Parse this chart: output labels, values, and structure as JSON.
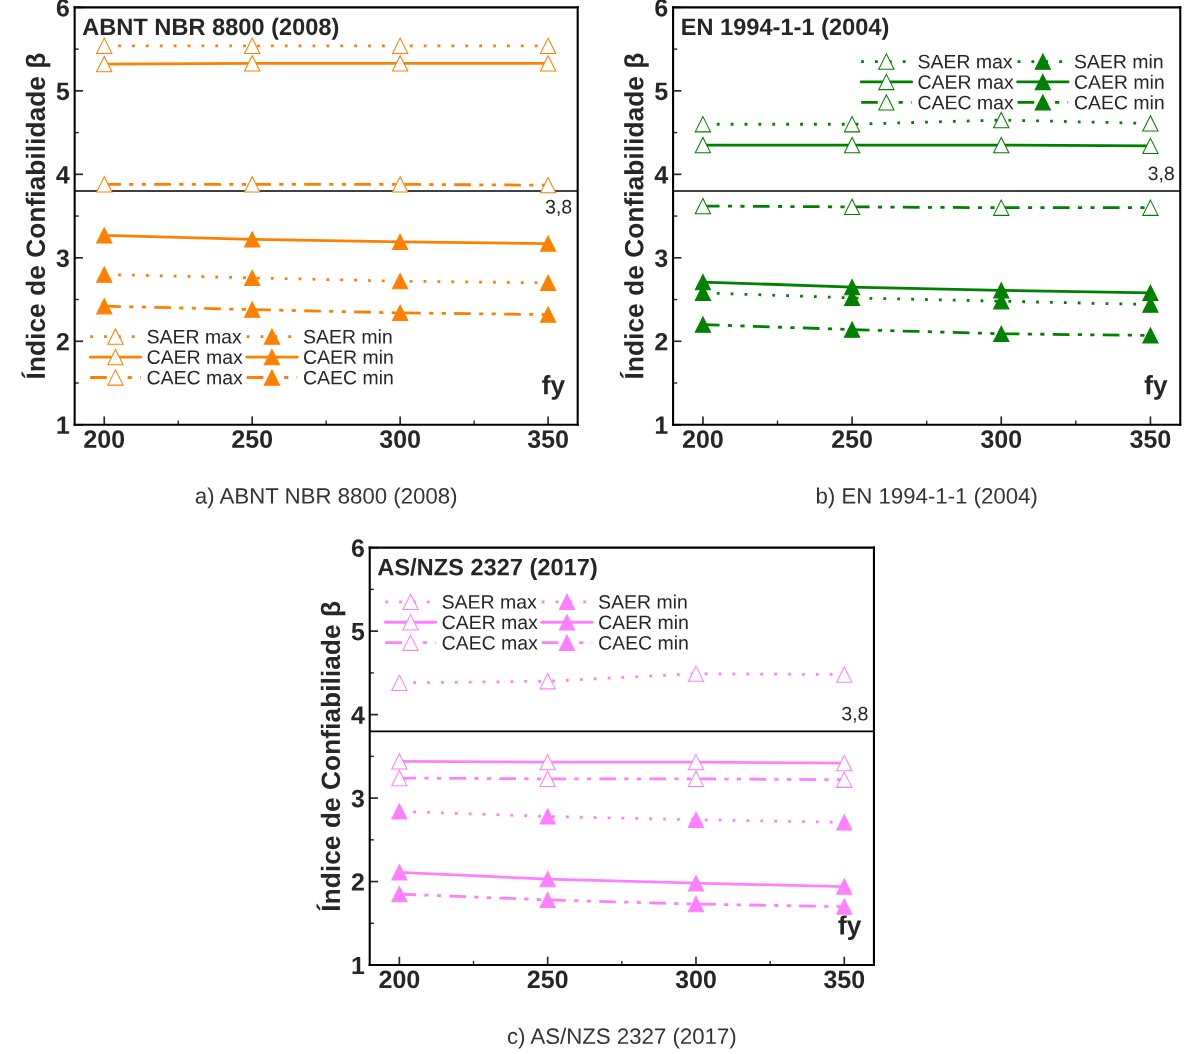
{
  "chart_data": [
    {
      "type": "line",
      "title": "ABNT NBR 8800 (2008)",
      "xlabel": "fy",
      "ylabel": "Índice de Confiabilidade β",
      "x": [
        200,
        250,
        300,
        350
      ],
      "xlim": [
        190,
        360
      ],
      "xticks": [
        200,
        250,
        300,
        350
      ],
      "ylim": [
        1,
        6
      ],
      "yticks": [
        1,
        2,
        3,
        4,
        5,
        6
      ],
      "grid": false,
      "legend": "bottom left",
      "marker": "triangle",
      "annotations": [
        "a) ABNT NBR 8800 (2008)"
      ],
      "ref_lines": [
        {
          "axis": "y",
          "value": 3.8,
          "label": "3,8",
          "color": "#000000",
          "line_style": "solid"
        }
      ],
      "series": [
        {
          "name": "SAER max",
          "color": "#ff8000",
          "line_style": "dotted",
          "values": [
            5.54,
            5.54,
            5.54,
            5.54
          ]
        },
        {
          "name": "CAER max",
          "color": "#ff8000",
          "line_style": "solid",
          "values": [
            5.32,
            5.33,
            5.33,
            5.33
          ]
        },
        {
          "name": "CAEC max",
          "color": "#ff8000",
          "line_style": "dashed",
          "values": [
            3.88,
            3.88,
            3.88,
            3.87
          ]
        },
        {
          "name": "SAER min",
          "color": "#ff8000",
          "line_style": "dotted",
          "values": [
            2.8,
            2.76,
            2.72,
            2.7
          ]
        },
        {
          "name": "CAER min",
          "color": "#ff8000",
          "line_style": "solid",
          "values": [
            3.27,
            3.22,
            3.19,
            3.17
          ]
        },
        {
          "name": "CAEC min",
          "color": "#ff8000",
          "line_style": "dashed",
          "values": [
            2.42,
            2.38,
            2.34,
            2.32
          ]
        }
      ]
    },
    {
      "type": "line",
      "title": "EN 1994-1-1 (2004)",
      "xlabel": "fy",
      "ylabel": "Índice de Confiabilidade β",
      "x": [
        200,
        250,
        300,
        350
      ],
      "xlim": [
        190,
        360
      ],
      "xticks": [
        200,
        250,
        300,
        350
      ],
      "ylim": [
        1,
        6
      ],
      "yticks": [
        1,
        2,
        3,
        4,
        5,
        6
      ],
      "grid": false,
      "legend": "top right",
      "marker": "triangle",
      "annotations": [
        "b) EN 1994-1-1 (2004)"
      ],
      "ref_lines": [
        {
          "axis": "y",
          "value": 3.8,
          "label": "3,8",
          "color": "#000000",
          "line_style": "solid"
        }
      ],
      "series": [
        {
          "name": "SAER max",
          "color": "#008000",
          "line_style": "dotted",
          "values": [
            4.6,
            4.6,
            4.65,
            4.61
          ]
        },
        {
          "name": "CAER max",
          "color": "#008000",
          "line_style": "solid",
          "values": [
            4.35,
            4.35,
            4.35,
            4.34
          ]
        },
        {
          "name": "CAEC max",
          "color": "#008000",
          "line_style": "dashed",
          "values": [
            3.62,
            3.61,
            3.6,
            3.6
          ]
        },
        {
          "name": "SAER min",
          "color": "#008000",
          "line_style": "dotted",
          "values": [
            2.58,
            2.52,
            2.48,
            2.44
          ]
        },
        {
          "name": "CAER min",
          "color": "#008000",
          "line_style": "solid",
          "values": [
            2.71,
            2.65,
            2.61,
            2.58
          ]
        },
        {
          "name": "CAEC min",
          "color": "#008000",
          "line_style": "dashed",
          "values": [
            2.2,
            2.14,
            2.09,
            2.07
          ]
        }
      ]
    },
    {
      "type": "line",
      "title": "AS/NZS 2327 (2017)",
      "xlabel": "fy",
      "ylabel": "Índice de Confiabiliade β",
      "x": [
        200,
        250,
        300,
        350
      ],
      "xlim": [
        190,
        360
      ],
      "xticks": [
        200,
        250,
        300,
        350
      ],
      "ylim": [
        1,
        6
      ],
      "yticks": [
        1,
        2,
        3,
        4,
        5,
        6
      ],
      "grid": false,
      "legend": "top left",
      "marker": "triangle",
      "annotations": [
        "c) AS/NZS 2327 (2017)"
      ],
      "ref_lines": [
        {
          "axis": "y",
          "value": 3.8,
          "label": "3,8",
          "color": "#000000",
          "line_style": "solid"
        }
      ],
      "series": [
        {
          "name": "SAER max",
          "color": "#ff80ff",
          "line_style": "dotted",
          "values": [
            4.38,
            4.4,
            4.49,
            4.48
          ]
        },
        {
          "name": "CAER max",
          "color": "#ff80ff",
          "line_style": "solid",
          "values": [
            3.44,
            3.43,
            3.43,
            3.42
          ]
        },
        {
          "name": "CAEC max",
          "color": "#ff80ff",
          "line_style": "dashed",
          "values": [
            3.24,
            3.23,
            3.23,
            3.22
          ]
        },
        {
          "name": "SAER min",
          "color": "#ff80ff",
          "line_style": "dotted",
          "values": [
            2.84,
            2.78,
            2.74,
            2.71
          ]
        },
        {
          "name": "CAER min",
          "color": "#ff80ff",
          "line_style": "solid",
          "values": [
            2.11,
            2.03,
            1.98,
            1.94
          ]
        },
        {
          "name": "CAEC min",
          "color": "#ff80ff",
          "line_style": "dashed",
          "values": [
            1.85,
            1.78,
            1.73,
            1.7
          ]
        }
      ]
    }
  ]
}
